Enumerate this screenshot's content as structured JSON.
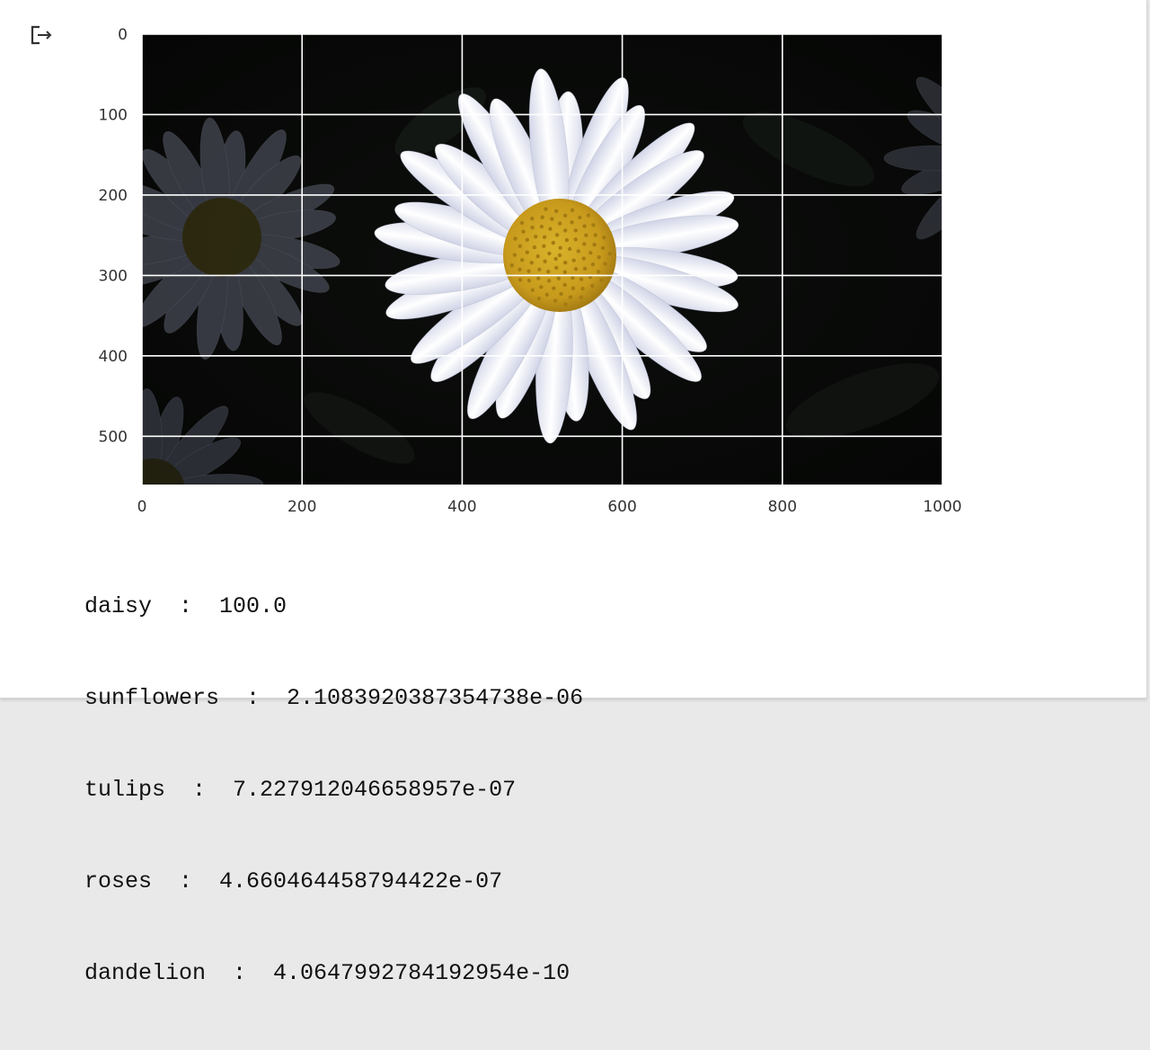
{
  "output_icon": "output-exit-icon",
  "chart_data": {
    "type": "image",
    "x_ticks": [
      "0",
      "200",
      "400",
      "600",
      "800",
      "1000"
    ],
    "y_ticks": [
      "0",
      "100",
      "200",
      "300",
      "400",
      "500"
    ],
    "xlim": [
      0,
      1000
    ],
    "ylim": [
      560,
      0
    ],
    "grid": true
  },
  "predictions": [
    {
      "label": "daisy",
      "sep": "  :  ",
      "value": "100.0"
    },
    {
      "label": "sunflowers",
      "sep": "  :  ",
      "value": "2.1083920387354738e-06"
    },
    {
      "label": "tulips",
      "sep": "  :  ",
      "value": "7.227912046658957e-07"
    },
    {
      "label": "roses",
      "sep": "  :  ",
      "value": "4.660464458794422e-07"
    },
    {
      "label": "dandelion",
      "sep": "  :  ",
      "value": "4.0647992784192954e-10"
    }
  ]
}
